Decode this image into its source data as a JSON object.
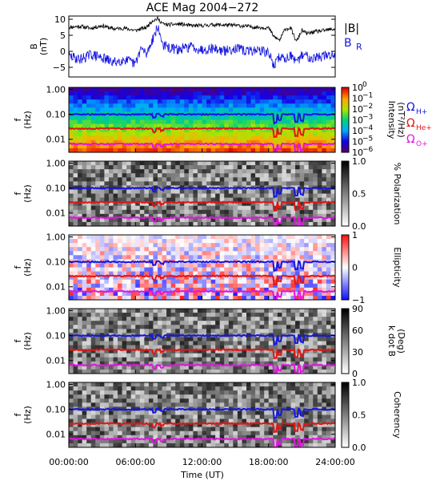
{
  "chart_data": {
    "type": "spectrogram",
    "title": "ACE Mag 2004−272",
    "xlabel": "Time (UT)",
    "x_ticks": [
      "00:00:00",
      "06:00:00",
      "12:00:00",
      "18:00:00",
      "24:00:00"
    ],
    "xlim_hours": [
      0,
      24
    ],
    "field_panel": {
      "ylabel_lines": [
        "B",
        "(nT)"
      ],
      "ylim": [
        -8,
        11
      ],
      "y_ticks": [
        "10",
        "5",
        "0",
        "−5"
      ],
      "legend": {
        "magnitude": "|B|",
        "radial_base": "B",
        "radial_sub": "R"
      },
      "colors": {
        "magnitude": "#000000",
        "radial": "#1515e0"
      },
      "magnitude_series": [
        [
          0,
          7.5
        ],
        [
          1,
          7.8
        ],
        [
          2,
          7.2
        ],
        [
          3,
          8.0
        ],
        [
          4,
          7.0
        ],
        [
          5,
          7.2
        ],
        [
          6,
          6.5
        ],
        [
          7,
          7.5
        ],
        [
          7.5,
          9.5
        ],
        [
          8,
          10.2
        ],
        [
          8.5,
          8.5
        ],
        [
          9,
          8.3
        ],
        [
          10,
          8.5
        ],
        [
          11,
          8.0
        ],
        [
          12,
          8.0
        ],
        [
          13,
          8.3
        ],
        [
          14,
          8.2
        ],
        [
          15,
          8.1
        ],
        [
          16,
          7.8
        ],
        [
          17,
          7.5
        ],
        [
          18,
          7.3
        ],
        [
          18.5,
          4.5
        ],
        [
          19,
          3.5
        ],
        [
          19.5,
          7.0
        ],
        [
          20,
          7.2
        ],
        [
          20.5,
          3.0
        ],
        [
          21,
          6.5
        ],
        [
          21.5,
          5.5
        ],
        [
          22,
          6.0
        ],
        [
          23,
          6.5
        ],
        [
          24,
          7.0
        ]
      ],
      "radial_series": [
        [
          0,
          -1.5
        ],
        [
          1,
          -2.5
        ],
        [
          2,
          -1.0
        ],
        [
          3,
          -2.0
        ],
        [
          4,
          -3.5
        ],
        [
          5,
          -2.5
        ],
        [
          6,
          -4.0
        ],
        [
          6.5,
          1.0
        ],
        [
          7,
          -1.0
        ],
        [
          7.5,
          3.5
        ],
        [
          8,
          7.5
        ],
        [
          8.5,
          2.0
        ],
        [
          9,
          1.0
        ],
        [
          10,
          0.5
        ],
        [
          11,
          1.5
        ],
        [
          12,
          0.5
        ],
        [
          13,
          1.0
        ],
        [
          14,
          0.0
        ],
        [
          15,
          1.0
        ],
        [
          16,
          0.0
        ],
        [
          17,
          0.5
        ],
        [
          18,
          -0.5
        ],
        [
          18.5,
          -4.5
        ],
        [
          19,
          -1.5
        ],
        [
          19.5,
          -2.5
        ],
        [
          20,
          -1.0
        ],
        [
          20.5,
          -4.0
        ],
        [
          21,
          -1.0
        ],
        [
          22,
          -2.0
        ],
        [
          23,
          -1.5
        ],
        [
          24,
          -1.0
        ]
      ]
    },
    "spectral_panels": [
      {
        "name": "intensity",
        "ylabel_lines": [
          "f",
          "(Hz)"
        ],
        "colorbar_label": "Intensity",
        "colorbar_units": "(nT²/Hz)",
        "colorbar_ticks": [
          {
            "base": "10",
            "exp": "0"
          },
          {
            "base": "10",
            "exp": "−1"
          },
          {
            "base": "10",
            "exp": "−2"
          },
          {
            "base": "10",
            "exp": "−3"
          },
          {
            "base": "10",
            "exp": "−4"
          },
          {
            "base": "10",
            "exp": "−5"
          },
          {
            "base": "10",
            "exp": "−6"
          }
        ],
        "colorscale": "rainbow",
        "log_range": [
          -6,
          0
        ]
      },
      {
        "name": "polarization",
        "ylabel_lines": [
          "f",
          "(Hz)"
        ],
        "colorbar_label": "% Polarization",
        "colorbar_units": "",
        "colorbar_ticks": [
          "1.0",
          "0.5",
          "0.0"
        ],
        "colorscale": "gray"
      },
      {
        "name": "ellipticity",
        "ylabel_lines": [
          "f",
          "(Hz)"
        ],
        "colorbar_label": "Ellipticity",
        "colorbar_units": "",
        "colorbar_ticks": [
          "1",
          "0",
          "−1"
        ],
        "colorscale": "bwr"
      },
      {
        "name": "k_dot_b",
        "ylabel_lines": [
          "f",
          "(Hz)"
        ],
        "colorbar_label": "k dot B",
        "colorbar_units": "(Deg)",
        "colorbar_ticks": [
          "90",
          "60",
          "30",
          "0"
        ],
        "colorscale": "gray"
      },
      {
        "name": "coherency",
        "ylabel_lines": [
          "f",
          "(Hz)"
        ],
        "colorbar_label": "Coherency",
        "colorbar_units": "",
        "colorbar_ticks": [
          "1.0",
          "0.5",
          "0.0"
        ],
        "colorscale": "gray"
      }
    ],
    "frequency_axis": {
      "scale": "log",
      "ylim": [
        0.003,
        1.2
      ],
      "y_ticks": [
        "1.00",
        "0.10",
        "0.01"
      ]
    },
    "gyrofrequency_legend": [
      {
        "symbol": "Ω",
        "sub": "H+",
        "color": "#1515e0"
      },
      {
        "symbol": "Ω",
        "sub": "He+",
        "color": "#e01515"
      },
      {
        "symbol": "Ω",
        "sub": "O+",
        "color": "#e015e0"
      }
    ],
    "gyrofrequency_lines": [
      {
        "name": "H+",
        "base_hz": 0.1,
        "color": "#1515e0"
      },
      {
        "name": "He+",
        "base_hz": 0.027,
        "color": "#e01515"
      },
      {
        "name": "O+",
        "base_hz": 0.0065,
        "color": "#e015e0"
      }
    ]
  }
}
